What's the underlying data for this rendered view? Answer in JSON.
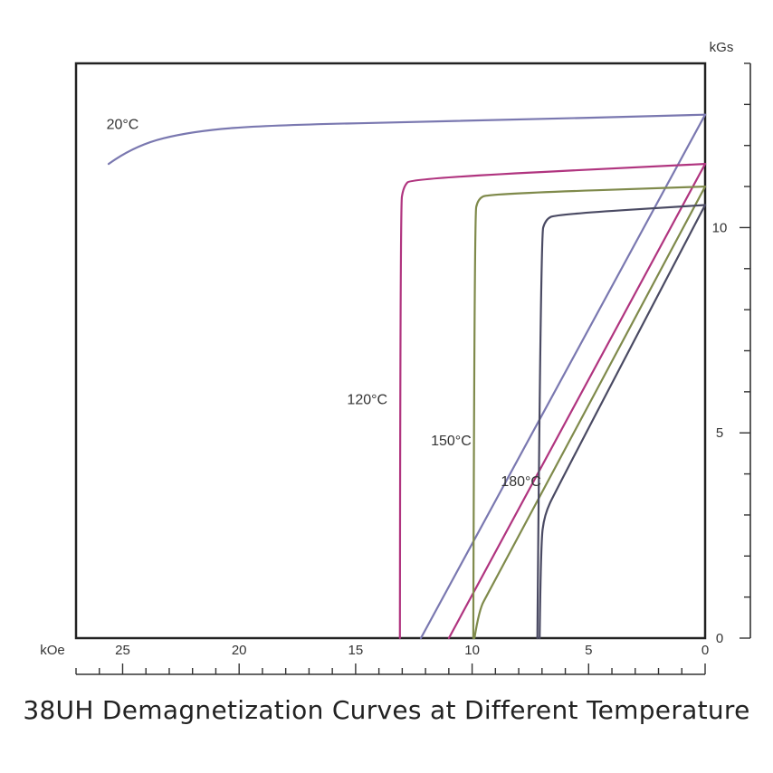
{
  "caption": "38UH Demagnetization Curves at Different Temperature",
  "colors": {
    "frame": "#222222",
    "axis": "#333333"
  },
  "chart_data": {
    "type": "line",
    "title": "38UH Demagnetization Curves at Different Temperature",
    "x_unit_label": "kOe",
    "y_unit_label": "kGs",
    "xlim": [
      27,
      0
    ],
    "ylim": [
      0,
      14
    ],
    "x_axis": "reversed (H in kOe, increasing to the left)",
    "x_ticks": [
      "25",
      "20",
      "15",
      "10",
      "5",
      "0"
    ],
    "y_ticks": [
      "0",
      "5",
      "10"
    ],
    "grid": false,
    "legend": "none (curves labelled directly)",
    "series": [
      {
        "name": "20°C",
        "color": "#7a78b0",
        "curve": "intrinsic",
        "points": [
          [
            25.6,
            11.55
          ],
          [
            24.5,
            12.0
          ],
          [
            22.0,
            12.35
          ],
          [
            18.5,
            12.5
          ],
          [
            10.0,
            12.6
          ],
          [
            0,
            12.75
          ]
        ]
      },
      {
        "name": "20°C",
        "color": "#7a78b0",
        "curve": "normal",
        "points": [
          [
            12.2,
            0
          ],
          [
            0,
            12.75
          ]
        ]
      },
      {
        "name": "120°C",
        "color": "#b0347f",
        "curve": "intrinsic",
        "points": [
          [
            13.1,
            0
          ],
          [
            13.08,
            10.5
          ],
          [
            12.95,
            11.0
          ],
          [
            12.6,
            11.2
          ],
          [
            0,
            11.55
          ]
        ]
      },
      {
        "name": "120°C",
        "color": "#b0347f",
        "curve": "normal",
        "points": [
          [
            11.0,
            0
          ],
          [
            0,
            11.55
          ]
        ]
      },
      {
        "name": "150°C",
        "color": "#7f8a4b",
        "curve": "intrinsic",
        "points": [
          [
            9.95,
            0
          ],
          [
            9.9,
            10.3
          ],
          [
            9.75,
            10.7
          ],
          [
            9.3,
            10.82
          ],
          [
            0,
            11.0
          ]
        ]
      },
      {
        "name": "150°C",
        "color": "#7f8a4b",
        "curve": "normal",
        "points": [
          [
            9.9,
            0
          ],
          [
            9.7,
            0.7
          ],
          [
            9.3,
            1.1
          ],
          [
            0,
            11.0
          ]
        ]
      },
      {
        "name": "180°C",
        "color": "#4a4a63",
        "curve": "intrinsic",
        "points": [
          [
            7.2,
            0
          ],
          [
            7.05,
            9.8
          ],
          [
            6.85,
            10.2
          ],
          [
            6.4,
            10.32
          ],
          [
            0,
            10.55
          ]
        ]
      },
      {
        "name": "180°C",
        "color": "#4a4a63",
        "curve": "normal",
        "points": [
          [
            7.1,
            0
          ],
          [
            7.05,
            2.3
          ],
          [
            6.9,
            3.0
          ],
          [
            6.4,
            3.6
          ],
          [
            0,
            10.55
          ]
        ]
      }
    ],
    "annotations": [
      {
        "text": "20°C",
        "near": [
          25.0,
          12.4
        ]
      },
      {
        "text": "120°C",
        "near": [
          14.5,
          5.7
        ]
      },
      {
        "text": "150°C",
        "near": [
          10.9,
          4.7
        ]
      },
      {
        "text": "180°C",
        "near": [
          7.9,
          3.7
        ]
      }
    ]
  }
}
